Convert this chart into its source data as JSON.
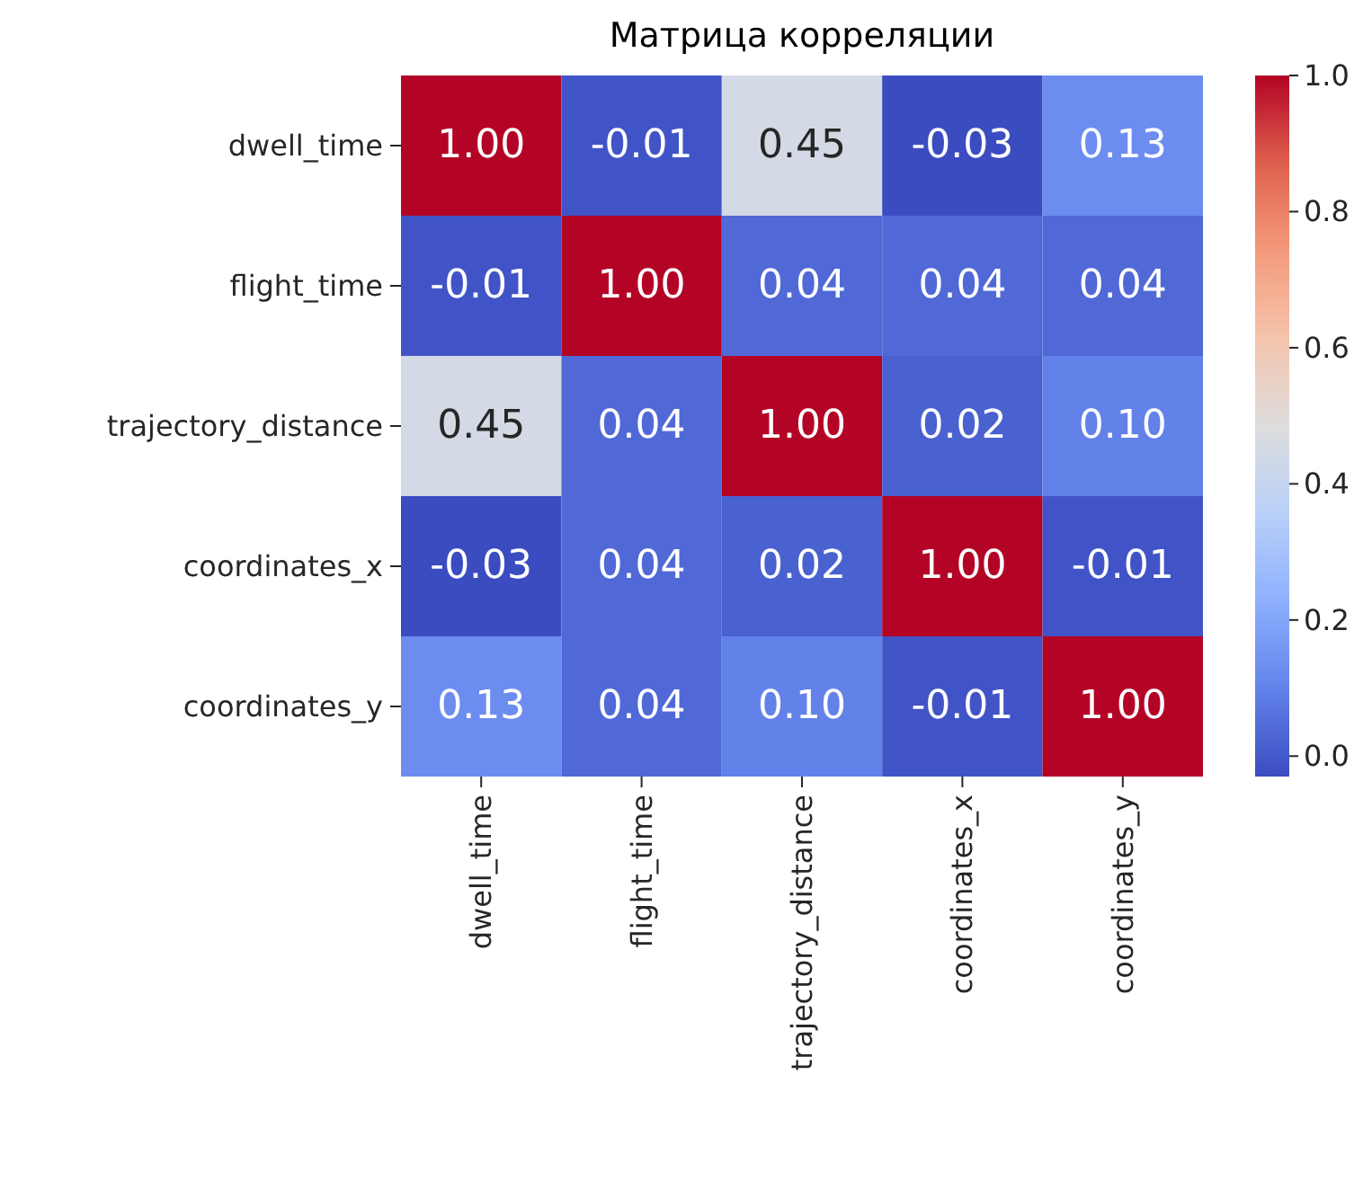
{
  "chart_data": {
    "type": "heatmap",
    "title": "Матрица корреляции",
    "categories": [
      "dwell_time",
      "flight_time",
      "trajectory_distance",
      "coordinates_x",
      "coordinates_y"
    ],
    "y_categories": [
      "dwell_time",
      "flight_time",
      "trajectory_distance",
      "coordinates_x",
      "coordinates_y"
    ],
    "cells": [
      [
        1.0,
        -0.01,
        0.45,
        -0.03,
        0.13
      ],
      [
        -0.01,
        1.0,
        0.04,
        0.04,
        0.04
      ],
      [
        0.45,
        0.04,
        1.0,
        0.02,
        0.1
      ],
      [
        -0.03,
        0.04,
        0.02,
        1.0,
        -0.01
      ],
      [
        0.13,
        0.04,
        0.1,
        -0.01,
        1.0
      ]
    ],
    "cell_labels": [
      [
        "1.00",
        "-0.01",
        "0.45",
        "-0.03",
        "0.13"
      ],
      [
        "-0.01",
        "1.00",
        "0.04",
        "0.04",
        "0.04"
      ],
      [
        "0.45",
        "0.04",
        "1.00",
        "0.02",
        "0.10"
      ],
      [
        "-0.03",
        "0.04",
        "0.02",
        "1.00",
        "-0.01"
      ],
      [
        "0.13",
        "0.04",
        "0.10",
        "-0.01",
        "1.00"
      ]
    ],
    "clim": [
      -0.03,
      1.0
    ],
    "cticks": [
      {
        "value": 0,
        "label": "0.0"
      },
      0.2,
      0.4,
      0.6,
      0.8,
      {
        "value": 1,
        "label": "1.0"
      }
    ]
  }
}
